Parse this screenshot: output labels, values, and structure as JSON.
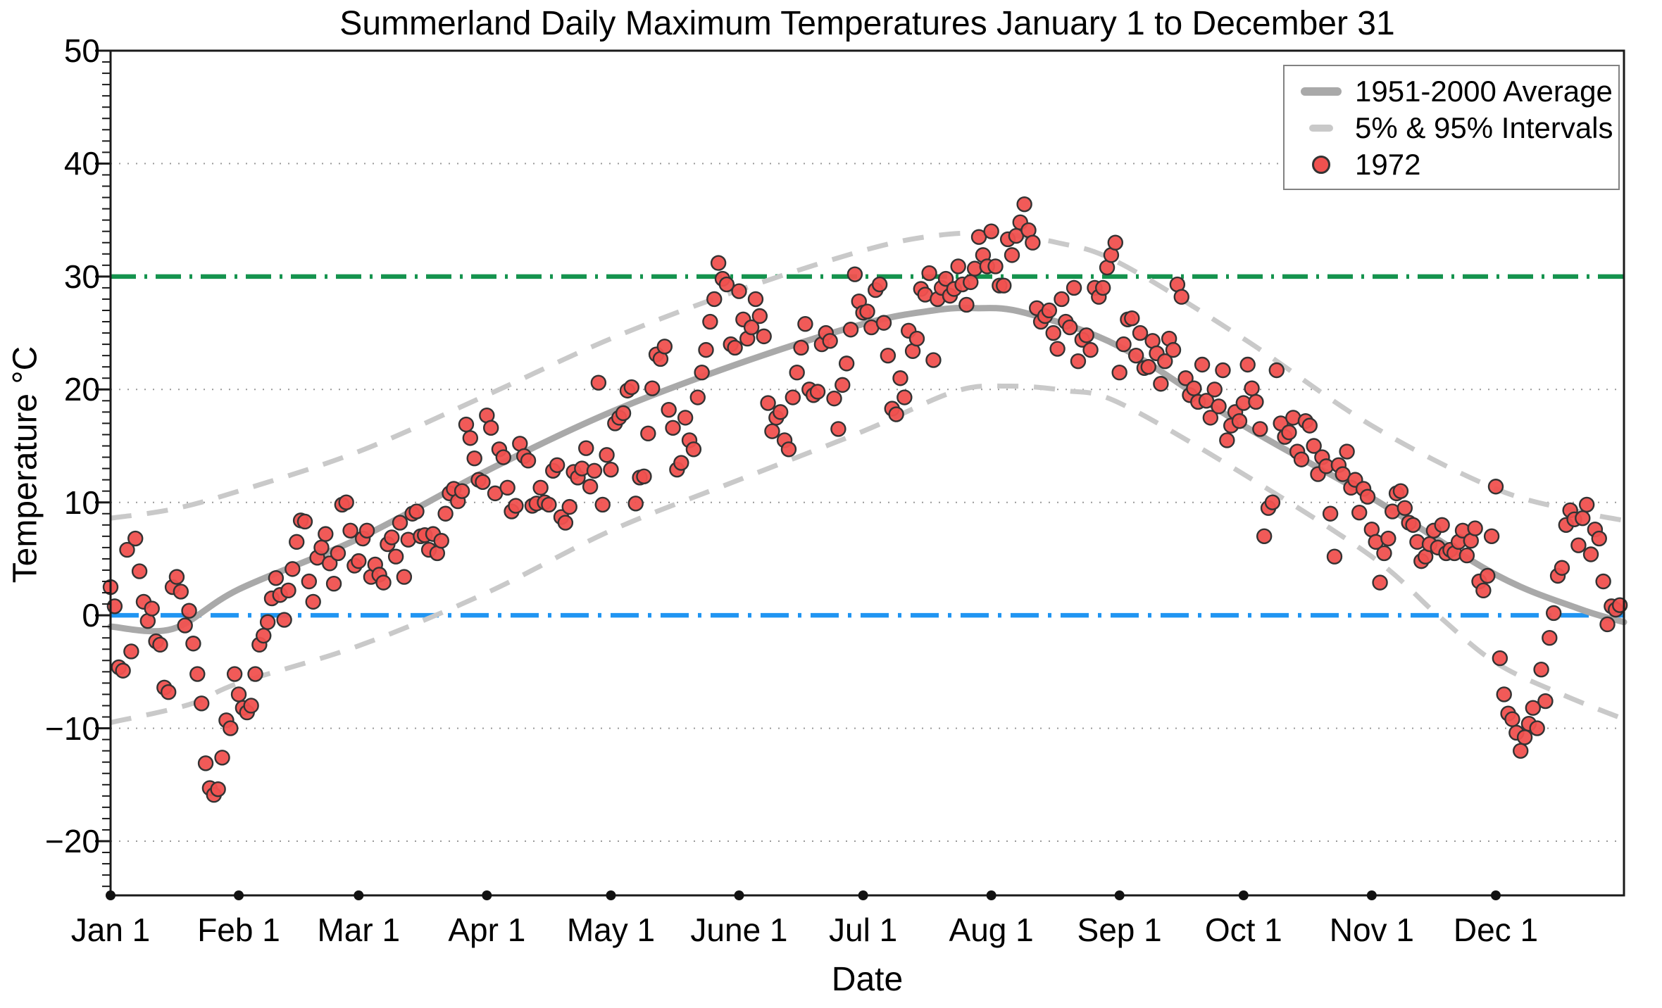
{
  "title": "Summerland Daily Maximum Temperatures January 1 to December 31",
  "axes": {
    "x": {
      "label": "Date",
      "ticks": [
        {
          "doy": 1,
          "label": "Jan 1"
        },
        {
          "doy": 32,
          "label": "Feb 1"
        },
        {
          "doy": 61,
          "label": "Mar 1"
        },
        {
          "doy": 92,
          "label": "Apr 1"
        },
        {
          "doy": 122,
          "label": "May 1"
        },
        {
          "doy": 153,
          "label": "June 1"
        },
        {
          "doy": 183,
          "label": "Jul 1"
        },
        {
          "doy": 214,
          "label": "Aug 1"
        },
        {
          "doy": 245,
          "label": "Sep 1"
        },
        {
          "doy": 275,
          "label": "Oct 1"
        },
        {
          "doy": 306,
          "label": "Nov 1"
        },
        {
          "doy": 336,
          "label": "Dec 1"
        }
      ],
      "total_days": 366
    },
    "y": {
      "label": "Temperature °C",
      "major_ticks": [
        {
          "value": 50,
          "label": "50"
        },
        {
          "value": 40,
          "label": "40"
        },
        {
          "value": 30,
          "label": "30"
        },
        {
          "value": 20,
          "label": "20"
        },
        {
          "value": 10,
          "label": "10"
        },
        {
          "value": 0,
          "label": "0"
        },
        {
          "value": -10,
          "label": "−10"
        },
        {
          "value": -20,
          "label": "−20"
        }
      ],
      "gridlines": [
        40,
        20,
        10,
        -10,
        -20
      ],
      "minor_tick_step": 1
    }
  },
  "legend": [
    {
      "label": "1951-2000 Average",
      "swatch": "thick-gray-line"
    },
    {
      "label": "5% & 95% Intervals",
      "swatch": "gray-dash"
    },
    {
      "label": "1972",
      "swatch": "red-dot"
    }
  ],
  "colors": {
    "average_line": "#a9a9a9",
    "interval_dash": "#c9c9c9",
    "scatter_fill": "#f0514f",
    "scatter_stroke": "#333333",
    "green_line": "#15934e",
    "blue_line": "#2095f2",
    "grid_dot": "#9a9a9a",
    "axis": "#1a1a1a"
  },
  "chart_data": {
    "type": "scatter",
    "title": "Summerland Daily Maximum Temperatures January 1 to December 31",
    "xlabel": "Date",
    "ylabel": "Temperature °C",
    "x_unit": "day_of_year_1972",
    "ylim": [
      -24.8,
      50
    ],
    "grid": "dotted horizontal at 40,20,10,-10,-20",
    "legend_position": "top-right",
    "reference_lines": [
      {
        "name": "green-30c-line",
        "y": 30,
        "style": "dashed",
        "color": "#15934e",
        "dash": "36 12 4 12"
      },
      {
        "name": "blue-0c-line",
        "y": 0,
        "style": "dash-dot",
        "color": "#2095f2",
        "dash": "40 13 5 13"
      }
    ],
    "series": [
      {
        "name": "1951-2000 Average",
        "type": "line",
        "color": "#a9a9a9",
        "width": 9,
        "points": [
          [
            1,
            -1.0
          ],
          [
            16,
            -1.2
          ],
          [
            32,
            2.3
          ],
          [
            61,
            6.8
          ],
          [
            92,
            12.8
          ],
          [
            122,
            18.0
          ],
          [
            153,
            22.3
          ],
          [
            183,
            25.8
          ],
          [
            200,
            27.0
          ],
          [
            210,
            27.2
          ],
          [
            222,
            26.8
          ],
          [
            245,
            23.8
          ],
          [
            275,
            16.8
          ],
          [
            306,
            10.4
          ],
          [
            336,
            3.6
          ],
          [
            356,
            0.6
          ],
          [
            367,
            -0.6
          ]
        ]
      },
      {
        "name": "95% Interval",
        "type": "dashed-line",
        "color": "#c9c9c9",
        "width": 7,
        "points": [
          [
            1,
            8.6
          ],
          [
            16,
            9.4
          ],
          [
            32,
            11.0
          ],
          [
            61,
            14.5
          ],
          [
            92,
            19.5
          ],
          [
            122,
            24.5
          ],
          [
            153,
            28.8
          ],
          [
            183,
            32.3
          ],
          [
            200,
            33.6
          ],
          [
            214,
            33.8
          ],
          [
            230,
            33.0
          ],
          [
            245,
            31.2
          ],
          [
            275,
            24.5
          ],
          [
            306,
            16.8
          ],
          [
            336,
            11.2
          ],
          [
            356,
            9.2
          ],
          [
            367,
            8.4
          ]
        ]
      },
      {
        "name": "5% Interval",
        "type": "dashed-line",
        "color": "#c9c9c9",
        "width": 7,
        "points": [
          [
            1,
            -9.5
          ],
          [
            20,
            -7.9
          ],
          [
            32,
            -6.0
          ],
          [
            61,
            -2.7
          ],
          [
            92,
            2.0
          ],
          [
            122,
            7.5
          ],
          [
            153,
            12.0
          ],
          [
            183,
            16.3
          ],
          [
            205,
            19.8
          ],
          [
            218,
            20.3
          ],
          [
            232,
            19.9
          ],
          [
            245,
            18.8
          ],
          [
            275,
            12.5
          ],
          [
            306,
            5.2
          ],
          [
            322,
            0.0
          ],
          [
            336,
            -4.2
          ],
          [
            352,
            -7.0
          ],
          [
            367,
            -9.2
          ]
        ]
      },
      {
        "name": "1972",
        "type": "scatter",
        "fill": "#f0514f",
        "stroke": "#333333",
        "radius": 10,
        "daily_values": [
          2.5,
          0.8,
          -4.6,
          -4.9,
          5.8,
          -3.2,
          6.8,
          3.9,
          1.2,
          -0.5,
          0.6,
          -2.3,
          -2.6,
          -6.4,
          -6.8,
          2.5,
          3.4,
          2.1,
          -0.9,
          0.4,
          -2.5,
          -5.2,
          -7.8,
          -13.1,
          -15.3,
          -15.9,
          -15.4,
          -12.6,
          -9.3,
          -10.0,
          -5.2,
          -7.0,
          -8.2,
          -8.6,
          -8.0,
          -5.2,
          -2.6,
          -1.8,
          -0.6,
          1.5,
          3.3,
          1.8,
          -0.4,
          2.2,
          4.1,
          6.5,
          8.4,
          8.3,
          3.0,
          1.2,
          5.1,
          6.0,
          7.2,
          4.6,
          2.8,
          5.5,
          9.8,
          10.0,
          7.5,
          4.4,
          4.8,
          6.8,
          7.5,
          3.4,
          4.5,
          3.6,
          2.9,
          6.3,
          6.9,
          5.2,
          8.2,
          3.4,
          6.7,
          9.0,
          9.2,
          7.0,
          7.1,
          5.8,
          7.2,
          5.5,
          6.6,
          9.0,
          10.8,
          11.2,
          10.1,
          11.0,
          16.9,
          15.7,
          13.9,
          12.0,
          11.8,
          17.7,
          16.6,
          10.8,
          14.7,
          14.0,
          11.3,
          9.2,
          9.7,
          15.2,
          14.1,
          13.7,
          9.7,
          9.9,
          11.3,
          10.0,
          9.8,
          12.8,
          13.3,
          8.7,
          8.2,
          9.6,
          12.7,
          12.2,
          13.0,
          14.8,
          11.4,
          12.8,
          20.6,
          9.8,
          14.2,
          12.9,
          17.0,
          17.5,
          17.9,
          19.9,
          20.2,
          9.9,
          12.2,
          12.3,
          16.1,
          20.1,
          23.1,
          22.7,
          23.8,
          18.2,
          16.6,
          12.9,
          13.5,
          17.5,
          15.5,
          14.7,
          19.3,
          21.5,
          23.5,
          26.0,
          28.0,
          31.2,
          29.8,
          29.3,
          24.0,
          23.7,
          28.7,
          26.2,
          24.5,
          25.5,
          28.0,
          26.5,
          24.7,
          18.8,
          16.3,
          17.5,
          18.0,
          15.5,
          14.7,
          19.3,
          21.5,
          23.7,
          25.8,
          20.0,
          19.5,
          19.8,
          24.0,
          25.0,
          24.3,
          19.2,
          16.5,
          20.4,
          22.3,
          25.3,
          30.2,
          27.8,
          26.8,
          26.9,
          25.5,
          28.8,
          29.3,
          25.9,
          23.0,
          18.3,
          17.8,
          21.0,
          19.3,
          25.2,
          23.4,
          24.5,
          28.9,
          28.4,
          30.3,
          22.6,
          28.0,
          29.0,
          29.8,
          28.3,
          28.9,
          30.9,
          29.3,
          27.5,
          29.5,
          30.7,
          33.5,
          31.9,
          30.9,
          34.0,
          30.9,
          29.2,
          29.2,
          33.3,
          31.9,
          33.6,
          34.8,
          36.4,
          34.1,
          33.0,
          27.2,
          26.0,
          26.5,
          27.0,
          25.0,
          23.6,
          28.0,
          26.0,
          25.5,
          29.0,
          22.5,
          24.4,
          24.8,
          23.5,
          29.0,
          28.2,
          29.0,
          30.8,
          31.9,
          33.0,
          21.5,
          24.0,
          26.2,
          26.3,
          23.0,
          25.0,
          21.9,
          22.0,
          24.3,
          23.2,
          20.5,
          22.5,
          24.5,
          23.5,
          29.3,
          28.2,
          21.0,
          19.5,
          20.1,
          18.9,
          22.2,
          19.0,
          17.5,
          20.0,
          18.5,
          21.7,
          15.5,
          16.8,
          18.0,
          17.2,
          18.8,
          22.2,
          20.1,
          18.9,
          16.5,
          7.0,
          9.5,
          10.0,
          21.7,
          17.0,
          15.8,
          16.2,
          17.5,
          14.5,
          13.8,
          17.2,
          16.8,
          15.0,
          12.5,
          14.0,
          13.2,
          9.0,
          5.2,
          13.3,
          12.5,
          14.5,
          11.3,
          12.0,
          9.1,
          11.2,
          10.5,
          7.6,
          6.5,
          2.9,
          5.5,
          6.8,
          9.2,
          10.8,
          11.0,
          9.5,
          8.2,
          8.0,
          6.5,
          4.8,
          5.2,
          6.3,
          7.5,
          6.0,
          8.0,
          5.5,
          5.8,
          5.5,
          6.5,
          7.5,
          5.3,
          6.6,
          7.7,
          3.0,
          2.2,
          3.5,
          7.0,
          11.4,
          -3.8,
          -7.0,
          -8.7,
          -9.2,
          -10.4,
          -12.0,
          -10.8,
          -9.6,
          -8.2,
          -10.0,
          -4.8,
          -7.6,
          -2.0,
          0.2,
          3.5,
          4.2,
          8.0,
          9.3,
          8.5,
          6.2,
          8.6,
          9.8,
          5.4,
          7.6,
          6.8,
          3.0,
          -0.8,
          0.8,
          0.5,
          0.9
        ]
      }
    ]
  }
}
